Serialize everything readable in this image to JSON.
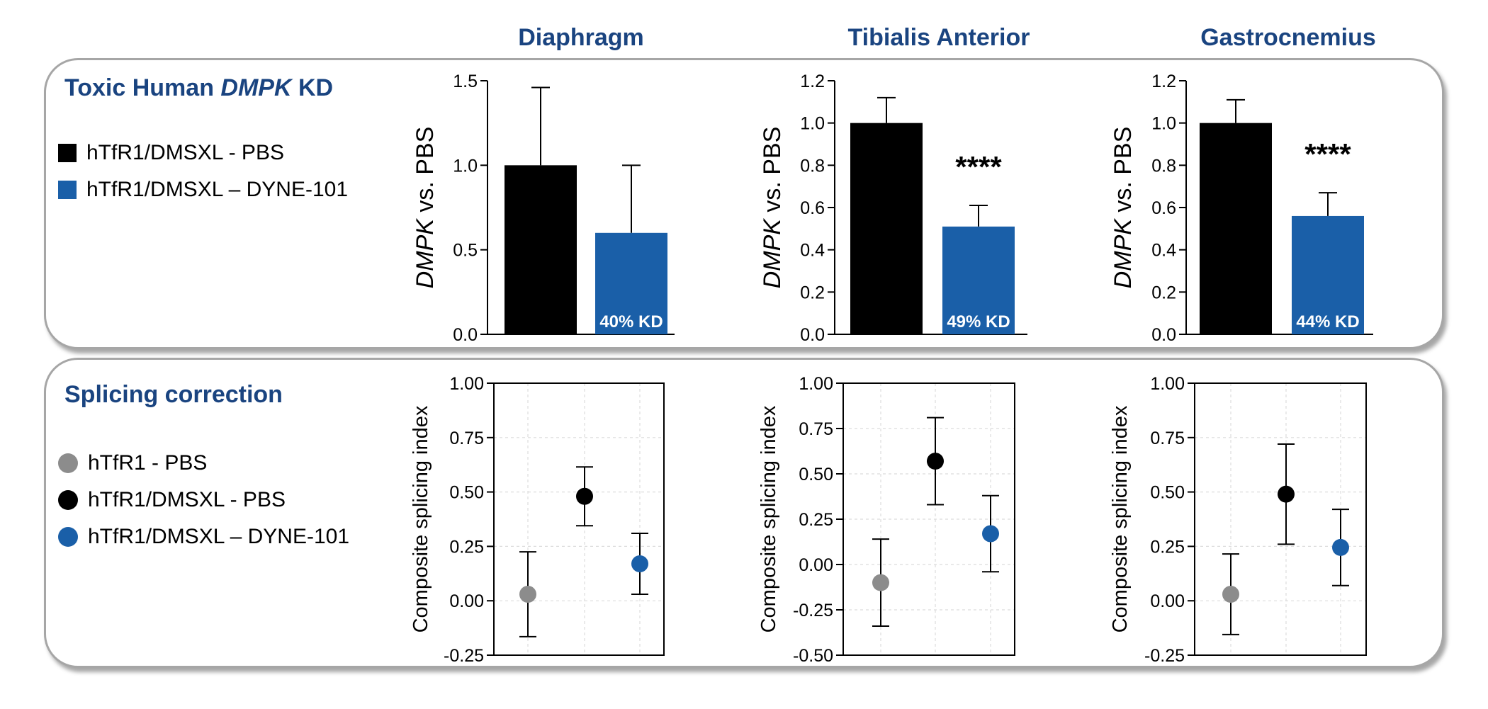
{
  "column_titles": [
    "Diaphragm",
    "Tibialis Anterior",
    "Gastrocnemius"
  ],
  "top_panel": {
    "title_pre": "Toxic Human ",
    "title_italic": "DMPK",
    "title_post": " KD",
    "legend": [
      {
        "label": "hTfR1/DMSXL - PBS",
        "color": "#000000"
      },
      {
        "label": "hTfR1/DMSXL – DYNE-101",
        "color": "#1a5fa8"
      }
    ]
  },
  "bottom_panel": {
    "title": "Splicing correction",
    "legend": [
      {
        "label": "hTfR1 - PBS",
        "color": "#8c8c8c"
      },
      {
        "label": "hTfR1/DMSXL - PBS",
        "color": "#000000"
      },
      {
        "label": "hTfR1/DMSXL – DYNE-101",
        "color": "#1a5fa8"
      }
    ]
  },
  "chart_data": [
    {
      "type": "bar",
      "muscle": "Diaphragm",
      "ylabel_italic": "DMPK",
      "ylabel_rest": " vs. PBS",
      "ylim": [
        0,
        1.5
      ],
      "yticks": [
        0.0,
        0.5,
        1.0,
        1.5
      ],
      "tick_labels": [
        "0.0",
        "0.5",
        "1.0",
        "1.5"
      ],
      "values": [
        1.0,
        0.6
      ],
      "errors": [
        0.46,
        0.4
      ],
      "colors": [
        "#000000",
        "#1a5fa8"
      ],
      "bar_label": "40% KD",
      "significance": ""
    },
    {
      "type": "bar",
      "muscle": "Tibialis Anterior",
      "ylabel_italic": "DMPK",
      "ylabel_rest": " vs. PBS",
      "ylim": [
        0,
        1.2
      ],
      "yticks": [
        0.0,
        0.2,
        0.4,
        0.6,
        0.8,
        1.0,
        1.2
      ],
      "tick_labels": [
        "0.0",
        "0.2",
        "0.4",
        "0.6",
        "0.8",
        "1.0",
        "1.2"
      ],
      "values": [
        1.0,
        0.51
      ],
      "errors": [
        0.12,
        0.1
      ],
      "colors": [
        "#000000",
        "#1a5fa8"
      ],
      "bar_label": "49% KD",
      "significance": "****"
    },
    {
      "type": "bar",
      "muscle": "Gastrocnemius",
      "ylabel_italic": "DMPK",
      "ylabel_rest": " vs. PBS",
      "ylim": [
        0,
        1.2
      ],
      "yticks": [
        0.0,
        0.2,
        0.4,
        0.6,
        0.8,
        1.0,
        1.2
      ],
      "tick_labels": [
        "0.0",
        "0.2",
        "0.4",
        "0.6",
        "0.8",
        "1.0",
        "1.2"
      ],
      "values": [
        1.0,
        0.56
      ],
      "errors": [
        0.11,
        0.11
      ],
      "colors": [
        "#000000",
        "#1a5fa8"
      ],
      "bar_label": "44% KD",
      "significance": "****"
    },
    {
      "type": "scatter",
      "muscle": "Diaphragm",
      "ylabel": "Composite splicing index",
      "ylim": [
        -0.25,
        1.0
      ],
      "yticks": [
        -0.25,
        0.0,
        0.25,
        0.5,
        0.75,
        1.0
      ],
      "tick_labels": [
        "-0.25",
        "0.00",
        "0.25",
        "0.50",
        "0.75",
        "1.00"
      ],
      "grid": true,
      "points": [
        {
          "y": 0.03,
          "err": 0.195,
          "color": "#8c8c8c"
        },
        {
          "y": 0.48,
          "err": 0.135,
          "color": "#000000"
        },
        {
          "y": 0.17,
          "err": 0.14,
          "color": "#1a5fa8"
        }
      ]
    },
    {
      "type": "scatter",
      "muscle": "Tibialis Anterior",
      "ylabel": "Composite splicing index",
      "ylim": [
        -0.5,
        1.0
      ],
      "yticks": [
        -0.5,
        -0.25,
        0.0,
        0.25,
        0.5,
        0.75,
        1.0
      ],
      "tick_labels": [
        "-0.50",
        "-0.25",
        "0.00",
        "0.25",
        "0.50",
        "0.75",
        "1.00"
      ],
      "grid": true,
      "points": [
        {
          "y": -0.1,
          "err": 0.24,
          "color": "#8c8c8c"
        },
        {
          "y": 0.57,
          "err": 0.24,
          "color": "#000000"
        },
        {
          "y": 0.17,
          "err": 0.21,
          "color": "#1a5fa8"
        }
      ]
    },
    {
      "type": "scatter",
      "muscle": "Gastrocnemius",
      "ylabel": "Composite splicing index",
      "ylim": [
        -0.25,
        1.0
      ],
      "yticks": [
        -0.25,
        0.0,
        0.25,
        0.5,
        0.75,
        1.0
      ],
      "tick_labels": [
        "-0.25",
        "0.00",
        "0.25",
        "0.50",
        "0.75",
        "1.00"
      ],
      "grid": true,
      "points": [
        {
          "y": 0.03,
          "err": 0.185,
          "color": "#8c8c8c"
        },
        {
          "y": 0.49,
          "err": 0.23,
          "color": "#000000"
        },
        {
          "y": 0.245,
          "err": 0.175,
          "color": "#1a5fa8"
        }
      ]
    }
  ]
}
